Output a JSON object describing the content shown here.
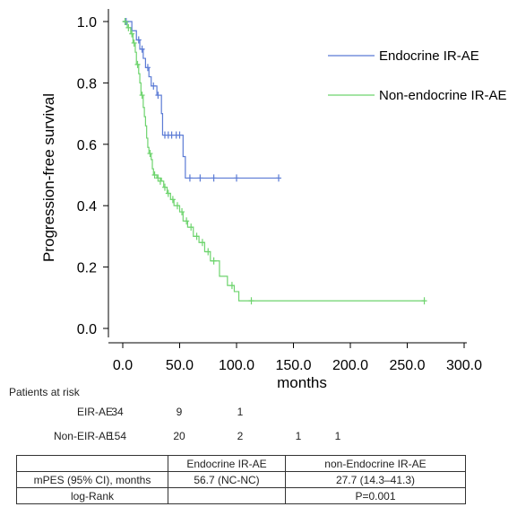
{
  "chart_data": {
    "type": "line",
    "step": true,
    "ylabel": "Progression-free survival",
    "xlabel": "months",
    "ylim": [
      0.0,
      1.0
    ],
    "xlim": [
      0,
      300
    ],
    "yticks": [
      "0.0",
      "0.2",
      "0.4",
      "0.6",
      "0.8",
      "1.0"
    ],
    "xticks": [
      "0.0",
      "50.0",
      "100.0",
      "150.0",
      "200.0",
      "250.0",
      "300.0"
    ],
    "legend_position": "top-right",
    "series": [
      {
        "name": "Endocrine IR-AE",
        "color": "#5b7bd5",
        "steps": [
          [
            0,
            1.0
          ],
          [
            8,
            0.97
          ],
          [
            12,
            0.94
          ],
          [
            15,
            0.91
          ],
          [
            18,
            0.88
          ],
          [
            20,
            0.85
          ],
          [
            23,
            0.82
          ],
          [
            25,
            0.79
          ],
          [
            30,
            0.76
          ],
          [
            34,
            0.7
          ],
          [
            35,
            0.63
          ],
          [
            53,
            0.56
          ],
          [
            55,
            0.49
          ],
          [
            137,
            0.49
          ]
        ],
        "censored": [
          [
            3,
            1.0
          ],
          [
            14,
            0.94
          ],
          [
            17,
            0.91
          ],
          [
            22,
            0.85
          ],
          [
            27,
            0.79
          ],
          [
            31,
            0.76
          ],
          [
            37,
            0.63
          ],
          [
            40,
            0.63
          ],
          [
            43,
            0.63
          ],
          [
            47,
            0.63
          ],
          [
            50,
            0.63
          ],
          [
            59,
            0.49
          ],
          [
            68,
            0.49
          ],
          [
            80,
            0.49
          ],
          [
            100,
            0.49
          ],
          [
            137,
            0.49
          ]
        ]
      },
      {
        "name": "Non-endocrine IR-AE",
        "color": "#6ed46e",
        "steps": [
          [
            0,
            1.0
          ],
          [
            4,
            0.98
          ],
          [
            7,
            0.96
          ],
          [
            9,
            0.93
          ],
          [
            11,
            0.9
          ],
          [
            12,
            0.86
          ],
          [
            14,
            0.83
          ],
          [
            15,
            0.8
          ],
          [
            16,
            0.76
          ],
          [
            18,
            0.72
          ],
          [
            19,
            0.69
          ],
          [
            20,
            0.66
          ],
          [
            21,
            0.62
          ],
          [
            22,
            0.59
          ],
          [
            23,
            0.57
          ],
          [
            25,
            0.55
          ],
          [
            26,
            0.52
          ],
          [
            27,
            0.5
          ],
          [
            30,
            0.49
          ],
          [
            34,
            0.48
          ],
          [
            36,
            0.46
          ],
          [
            39,
            0.44
          ],
          [
            42,
            0.42
          ],
          [
            45,
            0.4
          ],
          [
            50,
            0.38
          ],
          [
            53,
            0.35
          ],
          [
            57,
            0.33
          ],
          [
            62,
            0.3
          ],
          [
            67,
            0.28
          ],
          [
            72,
            0.25
          ],
          [
            77,
            0.22
          ],
          [
            85,
            0.17
          ],
          [
            92,
            0.14
          ],
          [
            98,
            0.12
          ],
          [
            102,
            0.09
          ],
          [
            265,
            0.09
          ]
        ],
        "censored": [
          [
            2,
            1.0
          ],
          [
            5,
            0.98
          ],
          [
            8,
            0.96
          ],
          [
            10,
            0.93
          ],
          [
            13,
            0.86
          ],
          [
            17,
            0.76
          ],
          [
            24,
            0.57
          ],
          [
            28,
            0.5
          ],
          [
            31,
            0.49
          ],
          [
            33,
            0.48
          ],
          [
            37,
            0.46
          ],
          [
            40,
            0.44
          ],
          [
            44,
            0.42
          ],
          [
            48,
            0.4
          ],
          [
            52,
            0.38
          ],
          [
            56,
            0.35
          ],
          [
            60,
            0.33
          ],
          [
            65,
            0.3
          ],
          [
            70,
            0.28
          ],
          [
            75,
            0.25
          ],
          [
            80,
            0.22
          ],
          [
            96,
            0.14
          ],
          [
            113,
            0.09
          ],
          [
            265,
            0.09
          ]
        ]
      }
    ]
  },
  "risk_table": {
    "title": "Patients at risk",
    "rows": [
      {
        "label": "EIR-AE",
        "counts": [
          "34",
          "9",
          "1",
          "",
          ""
        ]
      },
      {
        "label": "Non-EIR-AE",
        "counts": [
          "154",
          "20",
          "2",
          "1",
          "1"
        ]
      }
    ]
  },
  "summary_table": {
    "header": [
      "",
      "Endocrine IR-AE",
      "non-Endocrine IR-AE"
    ],
    "rows": [
      [
        "mPES (95% CI), months",
        "56.7 (NC-NC)",
        "27.7 (14.3–41.3)"
      ],
      [
        "log-Rank",
        "",
        "P=0.001"
      ]
    ]
  }
}
